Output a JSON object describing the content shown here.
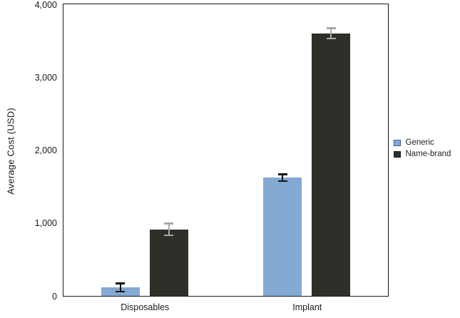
{
  "chart_data": {
    "type": "bar",
    "title": "",
    "xlabel": "",
    "ylabel": "Average Cost (USD)",
    "ylim": [
      0,
      4000
    ],
    "grid": false,
    "box_spines": true,
    "legend_position": "right-outside",
    "yticks": [
      {
        "value": 0,
        "label": "0"
      },
      {
        "value": 1000,
        "label": "1,000"
      },
      {
        "value": 2000,
        "label": "2,000"
      },
      {
        "value": 3000,
        "label": "3,000"
      },
      {
        "value": 4000,
        "label": "4,000"
      }
    ],
    "categories": [
      "Disposables",
      "Implant"
    ],
    "series": [
      {
        "name": "Generic",
        "color": "#83a9d4",
        "marker_border": "#3d618f",
        "error_color": "#111111",
        "values": [
          115,
          1620
        ],
        "errors": [
          55,
          45
        ]
      },
      {
        "name": "Name-brand",
        "color": "#2e2f29",
        "marker_border": "#1a1a1a",
        "error_color": "#a3a9ad",
        "values": [
          910,
          3600
        ],
        "errors": [
          80,
          70
        ]
      }
    ]
  },
  "colors": {
    "background": "#ffffff",
    "axis": "#1a1a1a",
    "text": "#1a1a1a"
  }
}
